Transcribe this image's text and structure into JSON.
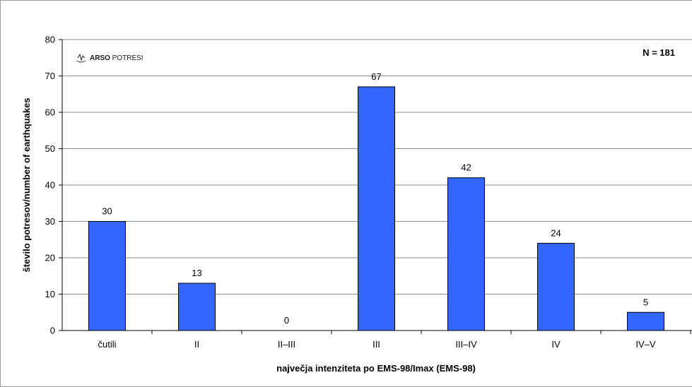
{
  "chart_data": {
    "type": "bar",
    "categories": [
      "čutili",
      "II",
      "II–III",
      "III",
      "III–IV",
      "IV",
      "IV–V"
    ],
    "values": [
      30,
      13,
      0,
      67,
      42,
      24,
      5
    ],
    "title": "",
    "xlabel": "največja intenziteta po EMS-98/Imax (EMS-98)",
    "ylabel": "število potresov/number of earthquakes",
    "ylim": [
      0,
      80
    ],
    "yticks": [
      0,
      10,
      20,
      30,
      40,
      50,
      60,
      70,
      80
    ],
    "grid": true,
    "legend": "none",
    "bar_color": "#3366ff",
    "annotation": "N = 181"
  },
  "logo": {
    "brand_bold": "ARSO",
    "brand_light": " POTRESI",
    "icon": "seismograph-icon"
  }
}
